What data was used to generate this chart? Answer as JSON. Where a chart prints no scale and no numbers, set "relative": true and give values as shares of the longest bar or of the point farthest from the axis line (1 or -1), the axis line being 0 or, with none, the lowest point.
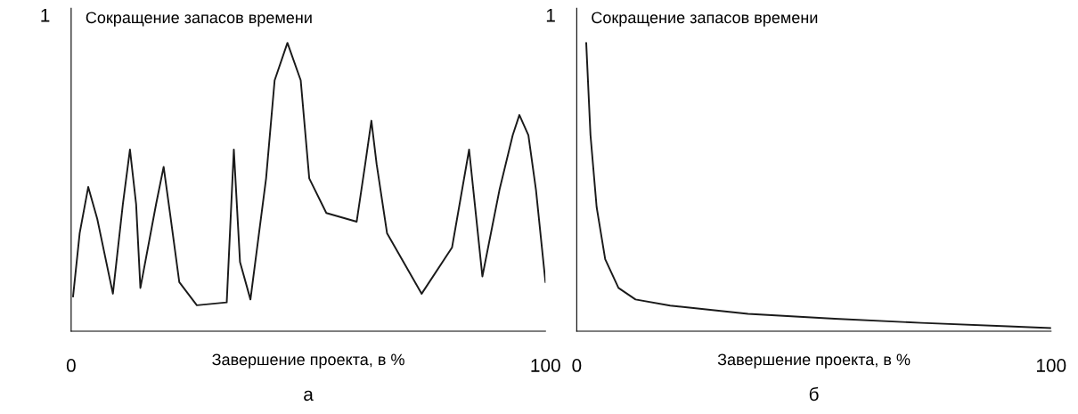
{
  "chart_data": [
    {
      "type": "line",
      "title": "Сокращение запасов времени",
      "xlabel": "Завершение проекта, в %",
      "relative": true,
      "xlim": [
        0,
        100
      ],
      "xticks": [
        0,
        100
      ],
      "grid": false,
      "legend": false,
      "marker": "none",
      "line_style": "solid",
      "annotations": [
        "1",
        "а"
      ],
      "series": [
        {
          "color": "#1a1a1a",
          "x": [
            0.4,
            1.8,
            3.6,
            5.5,
            8.8,
            10.9,
            12.4,
            13.7,
            14.6,
            17.9,
            19.5,
            21.0,
            22.8,
            26.5,
            32.8,
            34.3,
            35.6,
            37.8,
            41.1,
            42.9,
            45.6,
            48.4,
            50.2,
            53.8,
            60.2,
            62.0,
            63.3,
            64.4,
            66.6,
            73.9,
            80.3,
            83.9,
            86.7,
            90.3,
            93.1,
            94.5,
            96.4,
            98.0,
            100
          ],
          "values": [
            0.12,
            0.34,
            0.5,
            0.39,
            0.13,
            0.44,
            0.63,
            0.44,
            0.15,
            0.44,
            0.57,
            0.39,
            0.17,
            0.09,
            0.1,
            0.63,
            0.24,
            0.11,
            0.53,
            0.87,
            1,
            0.87,
            0.53,
            0.41,
            0.38,
            0.58,
            0.73,
            0.58,
            0.34,
            0.13,
            0.29,
            0.63,
            0.19,
            0.49,
            0.68,
            0.75,
            0.68,
            0.49,
            0.17
          ]
        }
      ]
    },
    {
      "type": "line",
      "title": "Сокращение запасов времени",
      "xlabel": "Завершение проекта, в %",
      "relative": true,
      "xlim": [
        0,
        100
      ],
      "xticks": [
        0,
        100
      ],
      "grid": false,
      "legend": false,
      "marker": "none",
      "line_style": "solid",
      "annotations": [
        "1",
        "б"
      ],
      "series": [
        {
          "color": "#1a1a1a",
          "x": [
            2.0,
            2.9,
            4.2,
            6.0,
            8.8,
            12.4,
            19.7,
            36.1,
            54.4,
            72.6,
            90.9,
            100
          ],
          "values": [
            1,
            0.68,
            0.43,
            0.25,
            0.15,
            0.11,
            0.089,
            0.06,
            0.043,
            0.029,
            0.017,
            0.011
          ]
        }
      ]
    }
  ]
}
